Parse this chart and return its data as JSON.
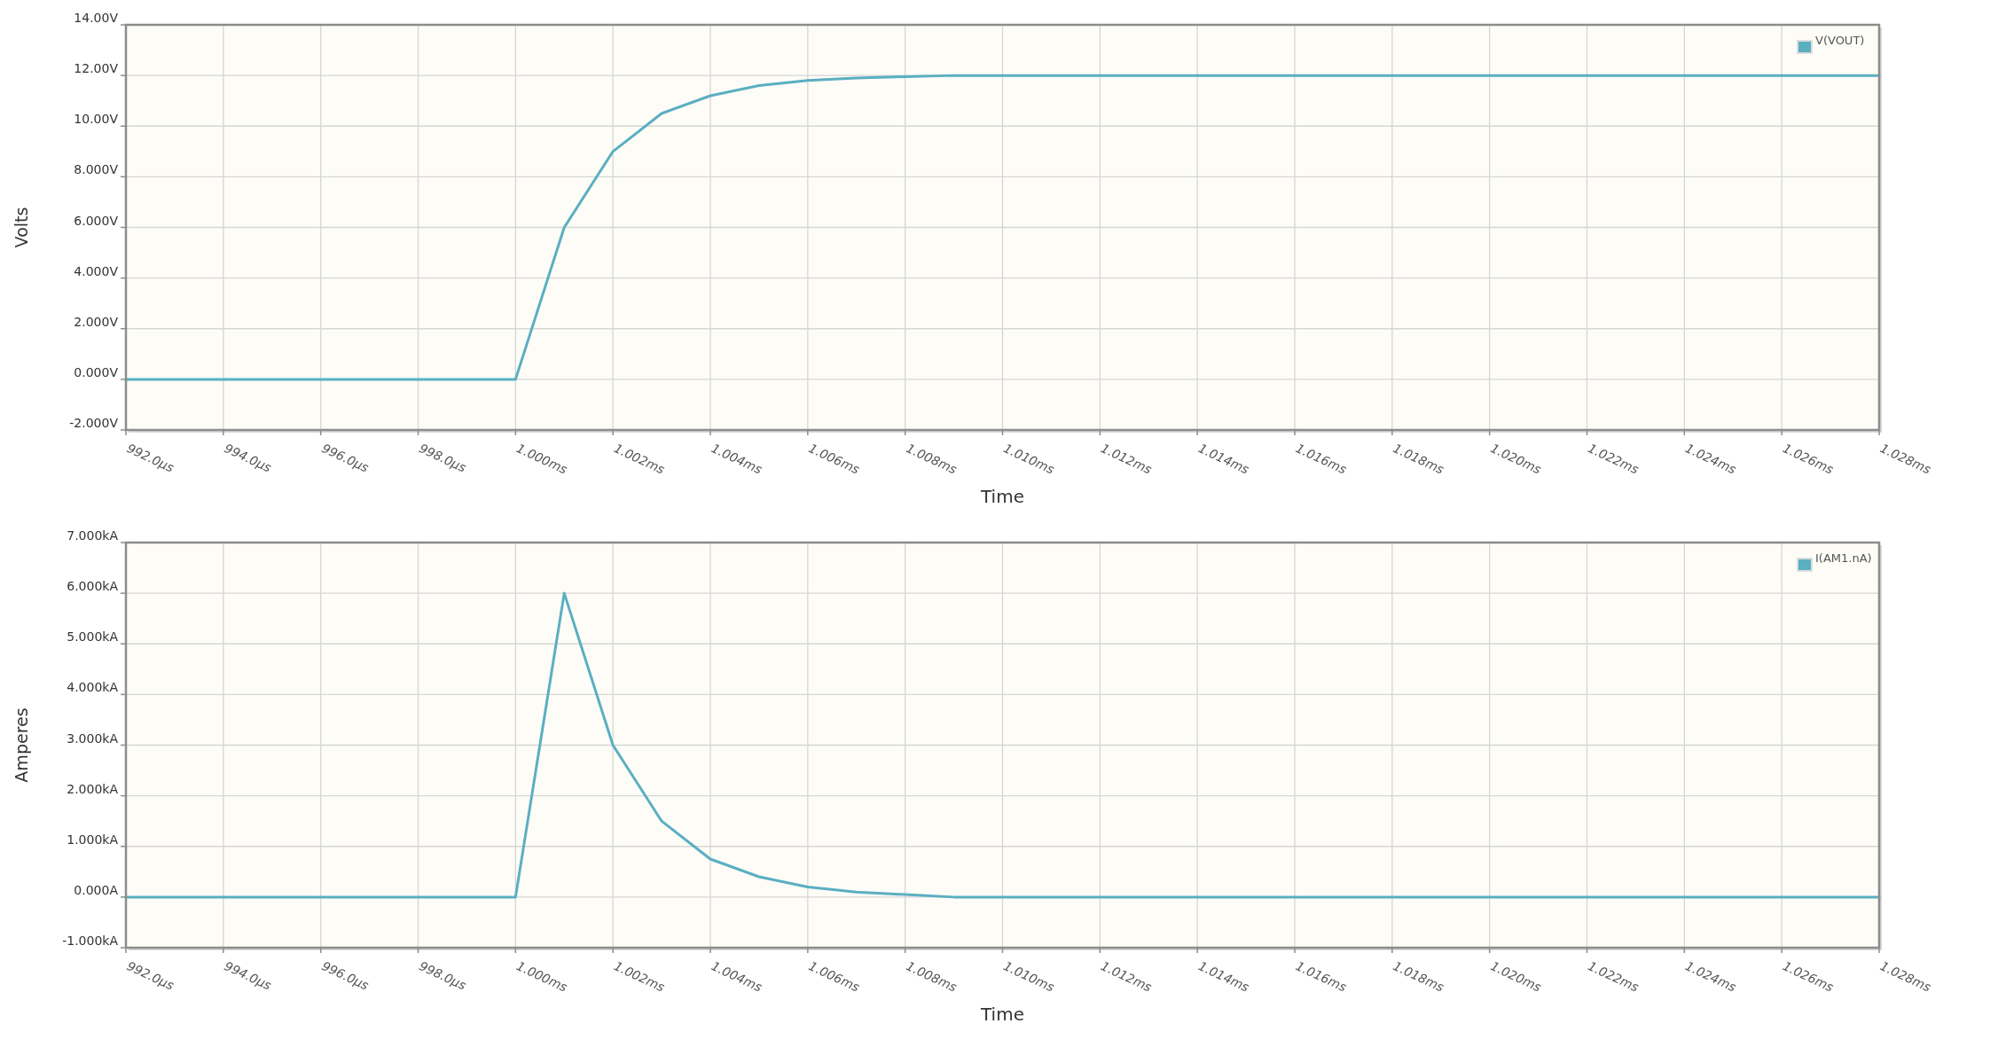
{
  "chart_data": [
    {
      "type": "line",
      "xlabel": "Time",
      "ylabel": "Volts",
      "categories": [
        "992.0µs",
        null,
        "994.0µs",
        null,
        "996.0µs",
        null,
        "998.0µs",
        null,
        "1.000ms",
        null,
        "1.002ms",
        null,
        "1.004ms",
        null,
        "1.006ms",
        null,
        "1.008ms",
        null,
        "1.010ms",
        null,
        "1.012ms",
        null,
        "1.014ms",
        null,
        "1.016ms",
        null,
        "1.018ms",
        null,
        "1.020ms",
        null,
        "1.022ms",
        null,
        "1.024ms",
        null,
        "1.026ms",
        null,
        "1.028ms"
      ],
      "series": [
        {
          "name": "V(VOUT)",
          "color": "#5aafc1",
          "values": [
            0,
            0,
            0,
            0,
            0,
            0,
            0,
            0,
            0,
            6,
            9,
            10.5,
            11.2,
            11.6,
            11.8,
            11.9,
            11.95,
            12,
            12,
            12,
            12,
            12,
            12,
            12,
            12,
            12,
            12,
            12,
            12,
            12,
            12,
            12,
            12,
            12,
            12,
            12,
            12
          ]
        }
      ],
      "ylim": [
        -2,
        14
      ],
      "yticks": [
        {
          "value": -2,
          "label": "-2.000V"
        },
        {
          "value": 0,
          "label": "0.000V"
        },
        {
          "value": 2,
          "label": "2.000V"
        },
        {
          "value": 4,
          "label": "4.000V"
        },
        {
          "value": 6,
          "label": "6.000V"
        },
        {
          "value": 8,
          "label": "8.000V"
        },
        {
          "value": 10,
          "label": "10.00V"
        },
        {
          "value": 12,
          "label": "12.00V"
        },
        {
          "value": 14,
          "label": "14.00V"
        }
      ],
      "grid": true,
      "legend": "top right"
    },
    {
      "type": "line",
      "xlabel": "Time",
      "ylabel": "Amperes",
      "categories": [
        "992.0µs",
        null,
        "994.0µs",
        null,
        "996.0µs",
        null,
        "998.0µs",
        null,
        "1.000ms",
        null,
        "1.002ms",
        null,
        "1.004ms",
        null,
        "1.006ms",
        null,
        "1.008ms",
        null,
        "1.010ms",
        null,
        "1.012ms",
        null,
        "1.014ms",
        null,
        "1.016ms",
        null,
        "1.018ms",
        null,
        "1.020ms",
        null,
        "1.022ms",
        null,
        "1.024ms",
        null,
        "1.026ms",
        null,
        "1.028ms"
      ],
      "series": [
        {
          "name": "I(AM1.nA)",
          "color": "#5aafc1",
          "values": [
            0,
            0,
            0,
            0,
            0,
            0,
            0,
            0,
            0,
            6,
            3,
            1.5,
            0.75,
            0.4,
            0.2,
            0.1,
            0.05,
            0,
            0,
            0,
            0,
            0,
            0,
            0,
            0,
            0,
            0,
            0,
            0,
            0,
            0,
            0,
            0,
            0,
            0,
            0,
            0
          ]
        }
      ],
      "ylim": [
        -1,
        7
      ],
      "yticks": [
        {
          "value": -1,
          "label": "-1.000kA"
        },
        {
          "value": 0,
          "label": "0.000A"
        },
        {
          "value": 1,
          "label": "1.000kA"
        },
        {
          "value": 2,
          "label": "2.000kA"
        },
        {
          "value": 3,
          "label": "3.000kA"
        },
        {
          "value": 4,
          "label": "4.000kA"
        },
        {
          "value": 5,
          "label": "5.000kA"
        },
        {
          "value": 6,
          "label": "6.000kA"
        },
        {
          "value": 7,
          "label": "7.000kA"
        }
      ],
      "grid": true,
      "legend": "top right"
    }
  ]
}
